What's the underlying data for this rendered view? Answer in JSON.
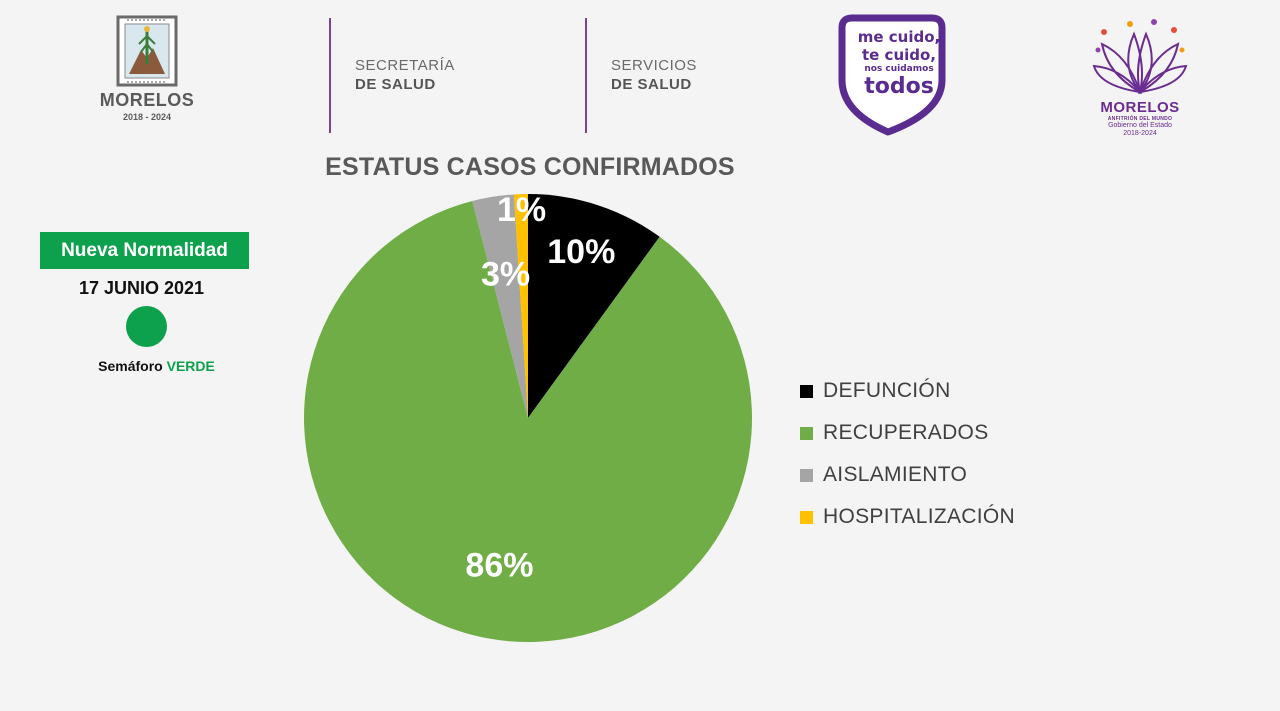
{
  "header": {
    "logo_morelos": {
      "name": "MORELOS",
      "years": "2018 - 2024"
    },
    "agency_1": {
      "line1": "SECRETARÍA",
      "line2": "DE SALUD"
    },
    "agency_2": {
      "line1": "SERVICIOS",
      "line2": "DE SALUD"
    },
    "campaign_logo": {
      "line1": "me cuido,",
      "line2": "te cuido,",
      "line3": "nos cuidamos",
      "line4": "todos",
      "color": "#5b2c8f"
    },
    "government_logo": {
      "title": "MORELOS",
      "subtitle": "ANFITRIÓN DEL MUNDO",
      "line1": "Gobierno del Estado",
      "line2": "2018-2024",
      "color": "#6b2d8f"
    },
    "divider_color": "#7b4397"
  },
  "status_panel": {
    "badge": "Nueva Normalidad",
    "date": "17 JUNIO 2021",
    "light_color": "#0ea14d",
    "semaforo_label": "Semáforo",
    "semaforo_value": "VERDE"
  },
  "chart_data": {
    "type": "pie",
    "title": "ESTATUS CASOS CONFIRMADOS",
    "categories": [
      "DEFUNCIÓN",
      "RECUPERADOS",
      "AISLAMIENTO",
      "HOSPITALIZACIÓN"
    ],
    "values": [
      10,
      86,
      3,
      1
    ],
    "data_labels": [
      "10%",
      "86%",
      "3%",
      "1%"
    ],
    "colors": [
      "#000000",
      "#70ad47",
      "#a5a5a5",
      "#ffc000"
    ],
    "legend": "right",
    "start_angle": "top, clockwise"
  }
}
